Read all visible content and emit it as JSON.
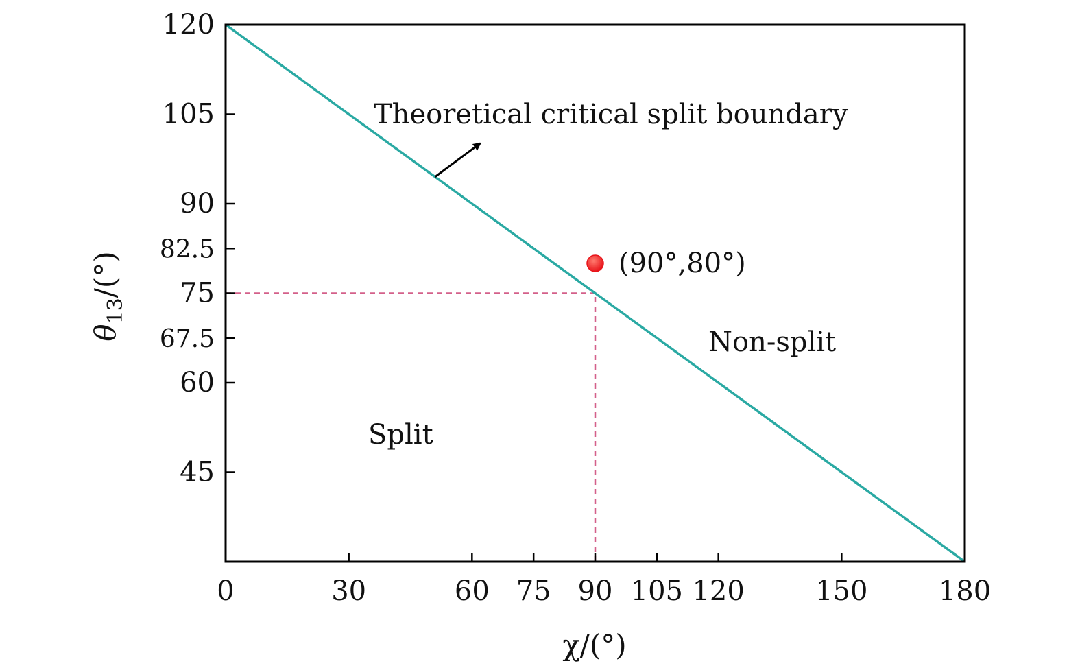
{
  "chart_data": {
    "type": "line",
    "x": [
      0,
      180
    ],
    "xlim": [
      0,
      180
    ],
    "ylim": [
      30,
      120
    ],
    "xticks": [
      0,
      30,
      60,
      75,
      90,
      105,
      120,
      150,
      180
    ],
    "xtick_labels": [
      "0",
      "30",
      "60",
      "75",
      "90",
      "105",
      "120",
      "150",
      "180"
    ],
    "yticks": [
      45,
      60,
      67.5,
      75,
      82.5,
      90,
      105,
      120
    ],
    "ytick_labels": [
      "45",
      "60",
      "67.5",
      "75",
      "82.5",
      "90",
      "105",
      "120"
    ],
    "xlabel": "χ/(°)",
    "ylabel": {
      "symbol": "θ",
      "subscript": "13",
      "unit": "/(°)"
    },
    "grid": false,
    "series": [
      {
        "name": "Theoretical critical split boundary",
        "x": [
          0,
          180
        ],
        "values": [
          120,
          30
        ],
        "color": "#2aa9a3",
        "style": "solid"
      }
    ],
    "reference_lines": [
      {
        "x": [
          0,
          90
        ],
        "y": [
          75,
          75
        ],
        "color": "#d4608a",
        "style": "dashed"
      },
      {
        "x": [
          90,
          90
        ],
        "y": [
          30,
          75
        ],
        "color": "#d4608a",
        "style": "dashed"
      }
    ],
    "points": [
      {
        "x": 90,
        "y": 80,
        "label": "(90°,80°)",
        "color": "#e8151b"
      }
    ],
    "annotations": {
      "boundary_label": "Theoretical critical split boundary",
      "boundary_arrow_to": {
        "x": 51,
        "y": 94.5
      },
      "region_above": "Non-split",
      "region_below": "Split"
    }
  }
}
